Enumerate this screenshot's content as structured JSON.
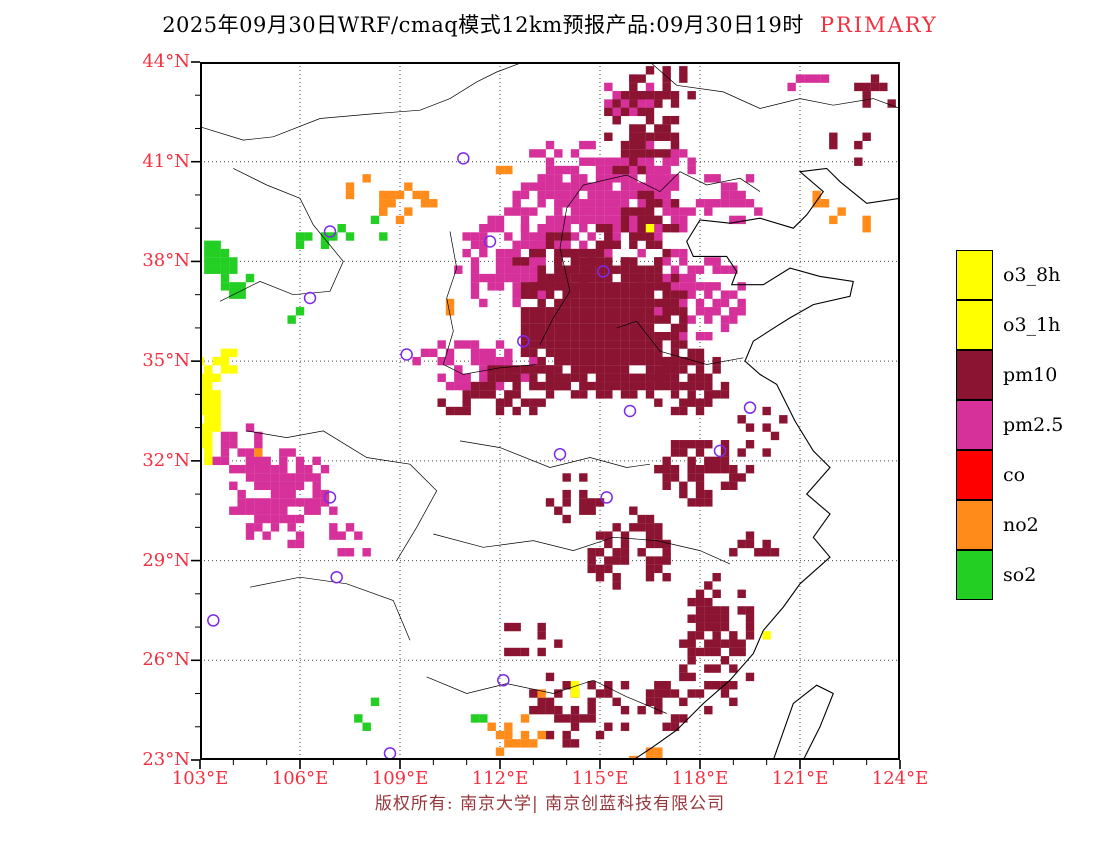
{
  "title": {
    "main": "2025年09月30日WRF/cmaq模式12km预报产品:09月30日19时",
    "tag": "PRIMARY"
  },
  "footer": "版权所有: 南京大学| 南京创蓝科技有限公司",
  "axes": {
    "lat_ticks": [
      "44°N",
      "41°N",
      "38°N",
      "35°N",
      "32°N",
      "29°N",
      "26°N",
      "23°N"
    ],
    "lon_ticks": [
      "103°E",
      "106°E",
      "109°E",
      "112°E",
      "115°E",
      "118°E",
      "121°E",
      "124°E"
    ]
  },
  "legend": [
    {
      "label": "o3_8h",
      "color": "#ffff00"
    },
    {
      "label": "o3_1h",
      "color": "#ffff00"
    },
    {
      "label": "pm10",
      "color": "#8b1432"
    },
    {
      "label": "pm2.5",
      "color": "#d6309a"
    },
    {
      "label": "co",
      "color": "#ff0000"
    },
    {
      "label": "no2",
      "color": "#ff8c1a"
    },
    {
      "label": "so2",
      "color": "#22cf22"
    }
  ],
  "chart_data": {
    "type": "heatmap",
    "subtype": "categorical-pollutant-map",
    "title": "2025年09月30日WRF/cmaq模式12km预报产品:09月30日19时 PRIMARY",
    "x_axis": {
      "label": "longitude",
      "range": [
        103,
        124
      ],
      "tick_step": 3,
      "ticks": [
        "103°E",
        "106°E",
        "109°E",
        "112°E",
        "115°E",
        "118°E",
        "121°E",
        "124°E"
      ]
    },
    "y_axis": {
      "label": "latitude",
      "range": [
        23,
        44
      ],
      "tick_step": 3,
      "ticks": [
        "23°N",
        "26°N",
        "29°N",
        "32°N",
        "35°N",
        "38°N",
        "41°N",
        "44°N"
      ]
    },
    "categories": [
      "o3_8h",
      "o3_1h",
      "pm10",
      "pm2.5",
      "co",
      "no2",
      "so2"
    ],
    "cell_size_deg": 0.25,
    "blobs": [
      {
        "cat": "pm2.5",
        "lon": 115.0,
        "lat": 39.6,
        "rx": 2.8,
        "ry": 1.6,
        "density": 0.78
      },
      {
        "cat": "pm2.5",
        "lon": 112.4,
        "lat": 38.0,
        "rx": 1.8,
        "ry": 1.5,
        "density": 0.6
      },
      {
        "cat": "pm2.5",
        "lon": 117.8,
        "lat": 37.0,
        "rx": 1.7,
        "ry": 1.5,
        "density": 0.6
      },
      {
        "cat": "pm2.5",
        "lon": 111.2,
        "lat": 34.8,
        "rx": 2.0,
        "ry": 0.8,
        "density": 0.5
      },
      {
        "cat": "pm2.5",
        "lon": 105.5,
        "lat": 30.9,
        "rx": 1.6,
        "ry": 1.5,
        "density": 0.62
      },
      {
        "cat": "pm2.5",
        "lon": 104.2,
        "lat": 32.4,
        "rx": 0.9,
        "ry": 0.8,
        "density": 0.5
      },
      {
        "cat": "pm2.5",
        "lon": 107.3,
        "lat": 29.6,
        "rx": 0.9,
        "ry": 0.6,
        "density": 0.4
      },
      {
        "cat": "pm2.5",
        "lon": 118.9,
        "lat": 39.9,
        "rx": 1.1,
        "ry": 0.8,
        "density": 0.5
      },
      {
        "cat": "pm2.5",
        "lon": 115.9,
        "lat": 42.8,
        "rx": 1.0,
        "ry": 0.8,
        "density": 0.35
      },
      {
        "cat": "pm2.5",
        "lon": 121.3,
        "lat": 43.4,
        "rx": 0.8,
        "ry": 0.4,
        "density": 0.5
      },
      {
        "cat": "pm2.5",
        "lon": 113.8,
        "lat": 41.3,
        "rx": 1.2,
        "ry": 0.6,
        "density": 0.4
      },
      {
        "cat": "pm2.5",
        "lon": 116.8,
        "lat": 40.8,
        "rx": 1.0,
        "ry": 0.8,
        "density": 0.45
      },
      {
        "cat": "pm10",
        "lon": 115.1,
        "lat": 36.2,
        "rx": 2.6,
        "ry": 2.4,
        "density": 0.95
      },
      {
        "cat": "pm10",
        "lon": 113.6,
        "lat": 37.9,
        "rx": 1.2,
        "ry": 1.0,
        "density": 0.5
      },
      {
        "cat": "pm10",
        "lon": 116.3,
        "lat": 39.0,
        "rx": 1.3,
        "ry": 1.2,
        "density": 0.5
      },
      {
        "cat": "pm10",
        "lon": 116.2,
        "lat": 41.9,
        "rx": 1.1,
        "ry": 1.5,
        "density": 0.55
      },
      {
        "cat": "pm10",
        "lon": 116.9,
        "lat": 43.3,
        "rx": 1.0,
        "ry": 0.7,
        "density": 0.45
      },
      {
        "cat": "pm10",
        "lon": 112.5,
        "lat": 34.2,
        "rx": 1.6,
        "ry": 0.8,
        "density": 0.6
      },
      {
        "cat": "pm10",
        "lon": 118.1,
        "lat": 31.7,
        "rx": 1.5,
        "ry": 1.0,
        "density": 0.6
      },
      {
        "cat": "pm10",
        "lon": 117.6,
        "lat": 34.3,
        "rx": 1.3,
        "ry": 1.0,
        "density": 0.7
      },
      {
        "cat": "pm10",
        "lon": 116.0,
        "lat": 29.3,
        "rx": 1.5,
        "ry": 1.2,
        "density": 0.45
      },
      {
        "cat": "pm10",
        "lon": 114.2,
        "lat": 30.9,
        "rx": 0.9,
        "ry": 0.7,
        "density": 0.4
      },
      {
        "cat": "pm10",
        "lon": 118.5,
        "lat": 26.5,
        "rx": 1.2,
        "ry": 2.2,
        "density": 0.55
      },
      {
        "cat": "pm10",
        "lon": 117.0,
        "lat": 24.6,
        "rx": 1.0,
        "ry": 0.8,
        "density": 0.45
      },
      {
        "cat": "pm10",
        "lon": 114.5,
        "lat": 24.6,
        "rx": 1.6,
        "ry": 1.2,
        "density": 0.45
      },
      {
        "cat": "pm10",
        "lon": 112.9,
        "lat": 26.6,
        "rx": 0.9,
        "ry": 0.7,
        "density": 0.3
      },
      {
        "cat": "pm10",
        "lon": 119.6,
        "lat": 29.2,
        "rx": 0.7,
        "ry": 0.6,
        "density": 0.35
      },
      {
        "cat": "pm10",
        "lon": 122.4,
        "lat": 41.6,
        "rx": 0.7,
        "ry": 0.9,
        "density": 0.35
      },
      {
        "cat": "pm10",
        "lon": 123.2,
        "lat": 43.0,
        "rx": 0.7,
        "ry": 0.6,
        "density": 0.4
      },
      {
        "cat": "pm10",
        "lon": 120.0,
        "lat": 33.0,
        "rx": 0.8,
        "ry": 0.8,
        "density": 0.35
      },
      {
        "cat": "pm10",
        "lon": 110.8,
        "lat": 33.8,
        "rx": 0.9,
        "ry": 0.5,
        "density": 0.4
      },
      {
        "cat": "so2",
        "lon": 103.5,
        "lat": 38.0,
        "rx": 0.6,
        "ry": 0.7,
        "density": 0.85
      },
      {
        "cat": "so2",
        "lon": 104.2,
        "lat": 37.2,
        "rx": 0.5,
        "ry": 0.5,
        "density": 0.5
      },
      {
        "cat": "so2",
        "lon": 106.8,
        "lat": 38.6,
        "rx": 1.2,
        "ry": 0.6,
        "density": 0.4
      },
      {
        "cat": "so2",
        "lon": 108.3,
        "lat": 39.1,
        "rx": 0.5,
        "ry": 0.5,
        "density": 0.45
      },
      {
        "cat": "so2",
        "lon": 105.9,
        "lat": 36.3,
        "rx": 0.35,
        "ry": 0.3,
        "density": 0.5
      },
      {
        "cat": "so2",
        "lon": 108.1,
        "lat": 24.3,
        "rx": 0.4,
        "ry": 0.5,
        "density": 0.55
      },
      {
        "cat": "so2",
        "lon": 111.3,
        "lat": 24.1,
        "rx": 0.3,
        "ry": 0.3,
        "density": 0.6
      },
      {
        "cat": "no2",
        "lon": 109.2,
        "lat": 39.8,
        "rx": 1.0,
        "ry": 0.6,
        "density": 0.55
      },
      {
        "cat": "no2",
        "lon": 107.9,
        "lat": 40.2,
        "rx": 0.5,
        "ry": 0.35,
        "density": 0.5
      },
      {
        "cat": "no2",
        "lon": 121.8,
        "lat": 39.6,
        "rx": 0.6,
        "ry": 0.5,
        "density": 0.6
      },
      {
        "cat": "no2",
        "lon": 112.5,
        "lat": 23.8,
        "rx": 0.9,
        "ry": 0.7,
        "density": 0.5
      },
      {
        "cat": "no2",
        "lon": 116.4,
        "lat": 23.2,
        "rx": 0.6,
        "ry": 0.3,
        "density": 0.6
      },
      {
        "cat": "no2",
        "lon": 110.4,
        "lat": 36.6,
        "rx": 0.2,
        "ry": 0.2,
        "density": 1
      },
      {
        "cat": "no2",
        "lon": 104.7,
        "lat": 32.1,
        "rx": 0.25,
        "ry": 0.2,
        "density": 0.8
      },
      {
        "cat": "no2",
        "lon": 113.4,
        "lat": 25.0,
        "rx": 0.3,
        "ry": 0.25,
        "density": 0.5
      },
      {
        "cat": "no2",
        "lon": 112.1,
        "lat": 40.7,
        "rx": 0.3,
        "ry": 0.25,
        "density": 0.6
      },
      {
        "cat": "no2",
        "lon": 123.0,
        "lat": 39.0,
        "rx": 0.3,
        "ry": 0.3,
        "density": 0.5
      },
      {
        "cat": "o3_8h",
        "lon": 103.2,
        "lat": 33.5,
        "rx": 0.4,
        "ry": 1.8,
        "density": 0.9
      },
      {
        "cat": "o3_8h",
        "lon": 103.7,
        "lat": 35.0,
        "rx": 0.4,
        "ry": 0.4,
        "density": 0.7
      },
      {
        "cat": "o3_8h",
        "lon": 120.0,
        "lat": 26.75,
        "rx": 0.2,
        "ry": 0.2,
        "density": 1
      },
      {
        "cat": "o3_8h",
        "lon": 114.2,
        "lat": 25.1,
        "rx": 0.2,
        "ry": 0.2,
        "density": 1
      },
      {
        "cat": "o3_8h",
        "lon": 116.4,
        "lat": 39.0,
        "rx": 0.15,
        "ry": 0.15,
        "density": 1
      }
    ],
    "stations": [
      [
        110.9,
        41.1
      ],
      [
        106.9,
        38.9
      ],
      [
        111.7,
        38.6
      ],
      [
        115.1,
        37.7
      ],
      [
        106.3,
        36.9
      ],
      [
        112.7,
        35.6
      ],
      [
        109.2,
        35.2
      ],
      [
        115.9,
        33.5
      ],
      [
        119.5,
        33.6
      ],
      [
        118.6,
        32.3
      ],
      [
        113.8,
        32.2
      ],
      [
        106.9,
        30.9
      ],
      [
        107.1,
        28.5
      ],
      [
        103.4,
        27.2
      ],
      [
        112.1,
        25.4
      ],
      [
        108.7,
        23.2
      ],
      [
        115.2,
        30.9
      ]
    ]
  }
}
